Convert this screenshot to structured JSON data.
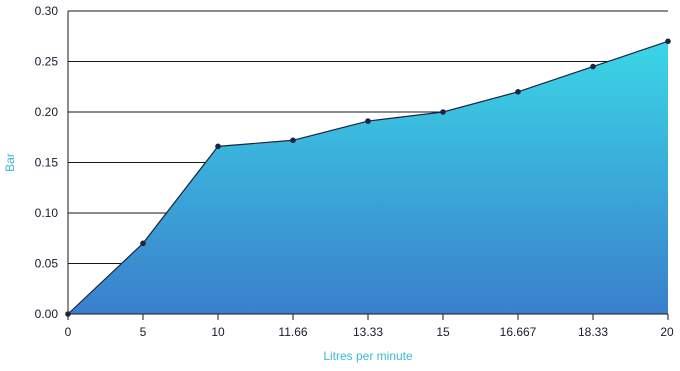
{
  "chart_data": {
    "type": "area",
    "title": "",
    "xlabel": "Litres per minute",
    "ylabel": "Bar",
    "x_categories": [
      "0",
      "5",
      "10",
      "11.66",
      "13.33",
      "15",
      "16.667",
      "18.33",
      "20"
    ],
    "series": [
      {
        "values": [
          0.0,
          0.07,
          0.166,
          0.172,
          0.191,
          0.2,
          0.22,
          0.245,
          0.27
        ]
      }
    ],
    "ylim": [
      0,
      0.3
    ],
    "y_ticks": [
      "0.00",
      "0.05",
      "0.10",
      "0.15",
      "0.20",
      "0.25",
      "0.30"
    ],
    "grid": "horizontal",
    "legend": "none",
    "colors": {
      "fill_top": "#3ad6e6",
      "fill_bottom": "#3a7fcc",
      "line": "#1c2440",
      "marker": "#1c2440",
      "axis_title": "#3bb8d8",
      "grid": "#1a1a1a"
    }
  }
}
